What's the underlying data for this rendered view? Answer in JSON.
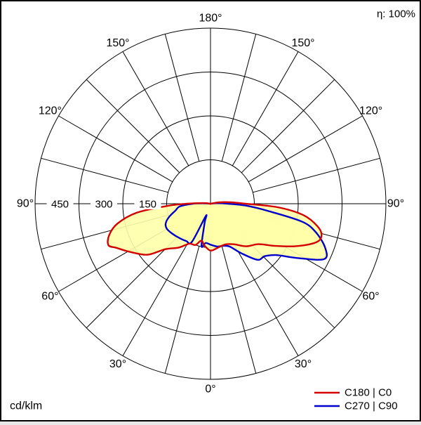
{
  "header": {
    "efficiency_label": "η: 100%"
  },
  "footer": {
    "unit_label": "cd/klm"
  },
  "legend": [
    {
      "label": "C180 | C0",
      "color": "#d40000"
    },
    {
      "label": "C270 | C90",
      "color": "#0000cd"
    }
  ],
  "chart_data": {
    "type": "line",
    "subtype": "polar-photometric-intensity-distribution",
    "unit": "cd/klm",
    "efficiency": "100%",
    "orientation": {
      "gamma_0deg": "bottom",
      "gamma_180deg": "top",
      "angle_label_step_deg": 30,
      "grid_step_deg": 15
    },
    "radial_axis": {
      "rings": [
        150,
        300,
        450,
        600
      ],
      "ring_labels": [
        "150",
        "300",
        "450"
      ],
      "max": 600
    },
    "angle_labels": [
      {
        "dir": 0,
        "label": "180°"
      },
      {
        "dir": 30,
        "label": "150°"
      },
      {
        "dir": -30,
        "label": "150°"
      },
      {
        "dir": 60,
        "label": "120°"
      },
      {
        "dir": -60,
        "label": "120°"
      },
      {
        "dir": 90,
        "label": "90°"
      },
      {
        "dir": -90,
        "label": "90°"
      },
      {
        "dir": 120,
        "label": "60°"
      },
      {
        "dir": -120,
        "label": "60°"
      },
      {
        "dir": 150,
        "label": "30°"
      },
      {
        "dir": -150,
        "label": "30°"
      },
      {
        "dir": 180,
        "label": "0°"
      }
    ],
    "fill_color": "#ffffa8",
    "series": [
      {
        "name": "C180 | C0",
        "color": "#d40000",
        "right_plane": "C0",
        "right": {
          "gamma": [
            0,
            10,
            20,
            30,
            40,
            50,
            57,
            64,
            70,
            74,
            78,
            83,
            87,
            90,
            94,
            99,
            105
          ],
          "values": [
            160,
            152,
            148,
            160,
            190,
            215,
            265,
            330,
            385,
            395,
            375,
            320,
            230,
            120,
            70,
            30,
            0
          ]
        },
        "left_plane": "C180",
        "left": {
          "gamma": [
            0,
            8,
            14,
            20,
            28,
            36,
            45,
            51,
            59,
            65,
            68,
            73,
            78,
            83,
            87,
            90,
            95,
            102
          ],
          "values": [
            160,
            145,
            130,
            150,
            155,
            185,
            220,
            277,
            320,
            356,
            377,
            362,
            325,
            255,
            150,
            80,
            25,
            0
          ]
        }
      },
      {
        "name": "C270 | C90",
        "color": "#0000cd",
        "right_plane": "C90",
        "right": {
          "gamma": [
            0,
            9,
            16,
            24,
            32,
            40,
            46,
            52,
            58,
            64,
            69,
            75,
            79,
            83,
            87,
            90,
            95,
            101
          ],
          "values": [
            140,
            148,
            150,
            160,
            200,
            250,
            258,
            285,
            350,
            432,
            420,
            372,
            317,
            195,
            120,
            60,
            20,
            0
          ]
        },
        "left_plane": "C270",
        "left": {
          "gamma": [
            0,
            7,
            12,
            17,
            21,
            26,
            33,
            42,
            52,
            60,
            66,
            72,
            79,
            85,
            90,
            95,
            100
          ],
          "values": [
            140,
            135,
            148,
            70,
            45,
            145,
            152,
            158,
            166,
            172,
            168,
            150,
            122,
            105,
            60,
            15,
            0
          ]
        }
      }
    ]
  }
}
